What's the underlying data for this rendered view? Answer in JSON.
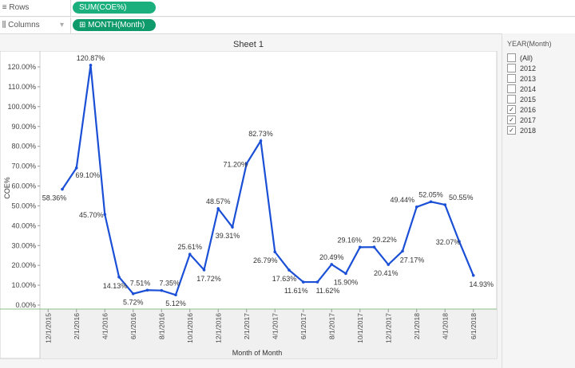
{
  "shelves": {
    "rows": {
      "label": "Rows",
      "icon": "rows-icon",
      "pill": "SUM(COE%)"
    },
    "columns": {
      "label": "Columns",
      "icon": "columns-icon",
      "pill": "⊞ MONTH(Month)"
    }
  },
  "sheet_title": "Sheet 1",
  "filter": {
    "title": "YEAR(Month)",
    "items": [
      {
        "label": "(All)",
        "checked": false
      },
      {
        "label": "2012",
        "checked": false
      },
      {
        "label": "2013",
        "checked": false
      },
      {
        "label": "2014",
        "checked": false
      },
      {
        "label": "2015",
        "checked": false
      },
      {
        "label": "2016",
        "checked": true
      },
      {
        "label": "2017",
        "checked": true
      },
      {
        "label": "2018",
        "checked": true
      }
    ]
  },
  "colors": {
    "line": "#1a4fd6",
    "pill": "#1aaf7c",
    "axis_bg": "#f0f0f0"
  },
  "chart_data": {
    "type": "line",
    "xlabel": "Month of Month",
    "ylabel": "COE%",
    "ylim": [
      0,
      120
    ],
    "yticks": [
      "0.00%",
      "10.00%",
      "20.00%",
      "30.00%",
      "40.00%",
      "50.00%",
      "60.00%",
      "70.00%",
      "80.00%",
      "90.00%",
      "100.00%",
      "110.00%",
      "120.00%"
    ],
    "xticks": [
      "12/1/2015",
      "2/1/2016",
      "4/1/2016",
      "6/1/2016",
      "8/1/2016",
      "10/1/2016",
      "12/1/2016",
      "2/1/2017",
      "4/1/2017",
      "6/1/2017",
      "8/1/2017",
      "10/1/2017",
      "12/1/2017",
      "2/1/2018",
      "4/1/2018",
      "6/1/2018"
    ],
    "x": [
      "1/1/2016",
      "2/1/2016",
      "3/1/2016",
      "4/1/2016",
      "5/1/2016",
      "6/1/2016",
      "7/1/2016",
      "8/1/2016",
      "9/1/2016",
      "10/1/2016",
      "11/1/2016",
      "12/1/2016",
      "1/1/2017",
      "2/1/2017",
      "3/1/2017",
      "4/1/2017",
      "5/1/2017",
      "6/1/2017",
      "7/1/2017",
      "8/1/2017",
      "9/1/2017",
      "10/1/2017",
      "11/1/2017",
      "12/1/2017",
      "1/1/2018",
      "2/1/2018",
      "3/1/2018",
      "4/1/2018",
      "5/1/2018",
      "6/1/2018"
    ],
    "values": [
      58.36,
      69.1,
      120.87,
      45.7,
      14.13,
      5.72,
      7.51,
      7.35,
      5.12,
      25.61,
      17.72,
      48.57,
      39.31,
      71.2,
      82.73,
      26.79,
      17.63,
      11.61,
      11.62,
      20.49,
      15.9,
      29.16,
      29.22,
      20.41,
      27.17,
      49.44,
      52.05,
      50.55,
      32.07,
      14.93
    ],
    "labels": [
      "58.36%",
      "69.10%",
      "120.87%",
      "45.70%",
      "14.13%",
      "5.72%",
      "7.51%",
      "7.35%",
      "5.12%",
      "25.61%",
      "17.72%",
      "48.57%",
      "39.31%",
      "71.20%",
      "82.73%",
      "26.79%",
      "17.63%",
      "11.61%",
      "11.62%",
      "20.49%",
      "15.90%",
      "29.16%",
      "29.22%",
      "20.41%",
      "27.17%",
      "49.44%",
      "52.05%",
      "50.55%",
      "32.07%",
      "14.93%"
    ],
    "grid": false
  }
}
